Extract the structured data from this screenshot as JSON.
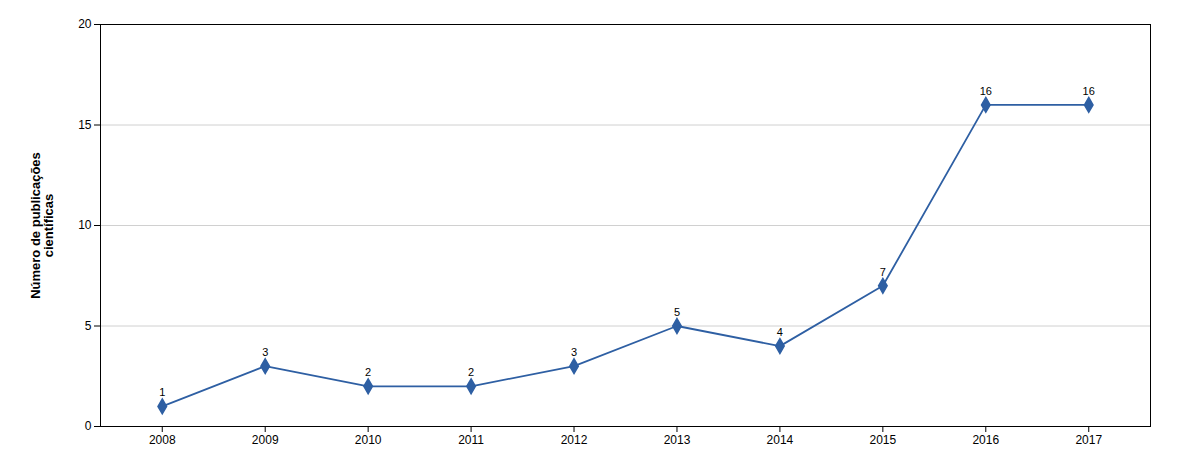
{
  "chart_data": {
    "type": "line",
    "x": [
      2008,
      2009,
      2010,
      2011,
      2012,
      2013,
      2014,
      2015,
      2016,
      2017
    ],
    "values": [
      1,
      3,
      2,
      2,
      3,
      5,
      4,
      7,
      16,
      16
    ],
    "color": "#2e5fa3",
    "marker": "diamond",
    "ylabel": "Número de publicações\ncientíficas",
    "xlim": [
      2007.4,
      2017.6
    ],
    "xticks": [
      2008,
      2009,
      2010,
      2011,
      2012,
      2013,
      2014,
      2015,
      2016,
      2017
    ],
    "ylim": [
      0,
      20
    ],
    "yticks": [
      0,
      5,
      10,
      15,
      20
    ],
    "grid": "y",
    "data_labels": true
  }
}
